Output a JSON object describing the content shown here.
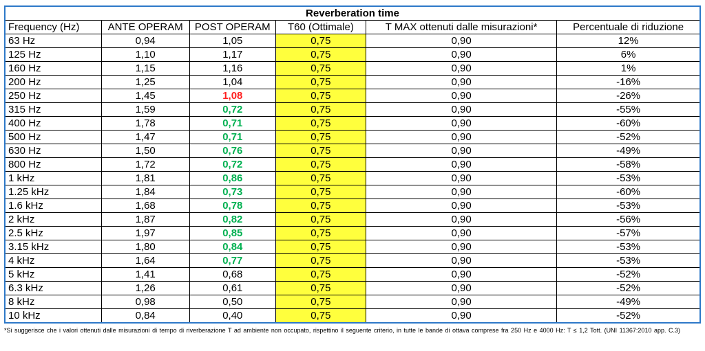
{
  "table": {
    "title": "Reverberation time",
    "columns": [
      "Frequency (Hz)",
      "ANTE OPERAM",
      "POST OPERAM",
      "T60 (Ottimale)",
      "T MAX ottenuti dalle misurazioni*",
      "Percentuale di riduzione"
    ],
    "rows": [
      {
        "freq": "63 Hz",
        "ante": "0,94",
        "post": "1,05",
        "post_style": "normal",
        "t60": "0,75",
        "tmax": "0,90",
        "perc": "12%"
      },
      {
        "freq": "125 Hz",
        "ante": "1,10",
        "post": "1,17",
        "post_style": "normal",
        "t60": "0,75",
        "tmax": "0,90",
        "perc": "6%"
      },
      {
        "freq": "160 Hz",
        "ante": "1,15",
        "post": "1,16",
        "post_style": "normal",
        "t60": "0,75",
        "tmax": "0,90",
        "perc": "1%"
      },
      {
        "freq": "200 Hz",
        "ante": "1,25",
        "post": "1,04",
        "post_style": "normal",
        "t60": "0,75",
        "tmax": "0,90",
        "perc": "-16%"
      },
      {
        "freq": "250 Hz",
        "ante": "1,45",
        "post": "1,08",
        "post_style": "red",
        "t60": "0,75",
        "tmax": "0,90",
        "perc": "-26%"
      },
      {
        "freq": "315 Hz",
        "ante": "1,59",
        "post": "0,72",
        "post_style": "green",
        "t60": "0,75",
        "tmax": "0,90",
        "perc": "-55%"
      },
      {
        "freq": "400 Hz",
        "ante": "1,78",
        "post": "0,71",
        "post_style": "green",
        "t60": "0,75",
        "tmax": "0,90",
        "perc": "-60%"
      },
      {
        "freq": "500 Hz",
        "ante": "1,47",
        "post": "0,71",
        "post_style": "green",
        "t60": "0,75",
        "tmax": "0,90",
        "perc": "-52%"
      },
      {
        "freq": "630 Hz",
        "ante": "1,50",
        "post": "0,76",
        "post_style": "green",
        "t60": "0,75",
        "tmax": "0,90",
        "perc": "-49%"
      },
      {
        "freq": "800 Hz",
        "ante": "1,72",
        "post": "0,72",
        "post_style": "green",
        "t60": "0,75",
        "tmax": "0,90",
        "perc": "-58%"
      },
      {
        "freq": "1 kHz",
        "ante": "1,81",
        "post": "0,86",
        "post_style": "green",
        "t60": "0,75",
        "tmax": "0,90",
        "perc": "-53%"
      },
      {
        "freq": "1.25 kHz",
        "ante": "1,84",
        "post": "0,73",
        "post_style": "green",
        "t60": "0,75",
        "tmax": "0,90",
        "perc": "-60%"
      },
      {
        "freq": "1.6 kHz",
        "ante": "1,68",
        "post": "0,78",
        "post_style": "green",
        "t60": "0,75",
        "tmax": "0,90",
        "perc": "-53%"
      },
      {
        "freq": "2 kHz",
        "ante": "1,87",
        "post": "0,82",
        "post_style": "green",
        "t60": "0,75",
        "tmax": "0,90",
        "perc": "-56%"
      },
      {
        "freq": "2.5 kHz",
        "ante": "1,97",
        "post": "0,85",
        "post_style": "green",
        "t60": "0,75",
        "tmax": "0,90",
        "perc": "-57%"
      },
      {
        "freq": "3.15 kHz",
        "ante": "1,80",
        "post": "0,84",
        "post_style": "green",
        "t60": "0,75",
        "tmax": "0,90",
        "perc": "-53%"
      },
      {
        "freq": "4 kHz",
        "ante": "1,64",
        "post": "0,77",
        "post_style": "green",
        "t60": "0,75",
        "tmax": "0,90",
        "perc": "-53%"
      },
      {
        "freq": "5 kHz",
        "ante": "1,41",
        "post": "0,68",
        "post_style": "normal",
        "t60": "0,75",
        "tmax": "0,90",
        "perc": "-52%"
      },
      {
        "freq": "6.3 kHz",
        "ante": "1,26",
        "post": "0,61",
        "post_style": "normal",
        "t60": "0,75",
        "tmax": "0,90",
        "perc": "-52%"
      },
      {
        "freq": "8 kHz",
        "ante": "0,98",
        "post": "0,50",
        "post_style": "normal",
        "t60": "0,75",
        "tmax": "0,90",
        "perc": "-49%"
      },
      {
        "freq": "10 kHz",
        "ante": "0,84",
        "post": "0,40",
        "post_style": "normal",
        "t60": "0,75",
        "tmax": "0,90",
        "perc": "-52%"
      }
    ]
  },
  "footnote": "*Si suggerisce che i valori ottenuti dalle misurazioni di tempo di riverberazione T ad ambiente non occupato, rispettino il seguente criterio, in tutte le bande di ottava comprese fra 250 Hz e 4000 Hz: T ≤ 1,2 Tott. (UNI 11367:2010 app. C.3)",
  "colors": {
    "outer_border_blue": "#2d78c8",
    "t60_highlight_yellow": "#ffff3d",
    "post_operam_green": "#00b050",
    "post_operam_red": "#ff1f1f",
    "text_black": "#000000"
  }
}
